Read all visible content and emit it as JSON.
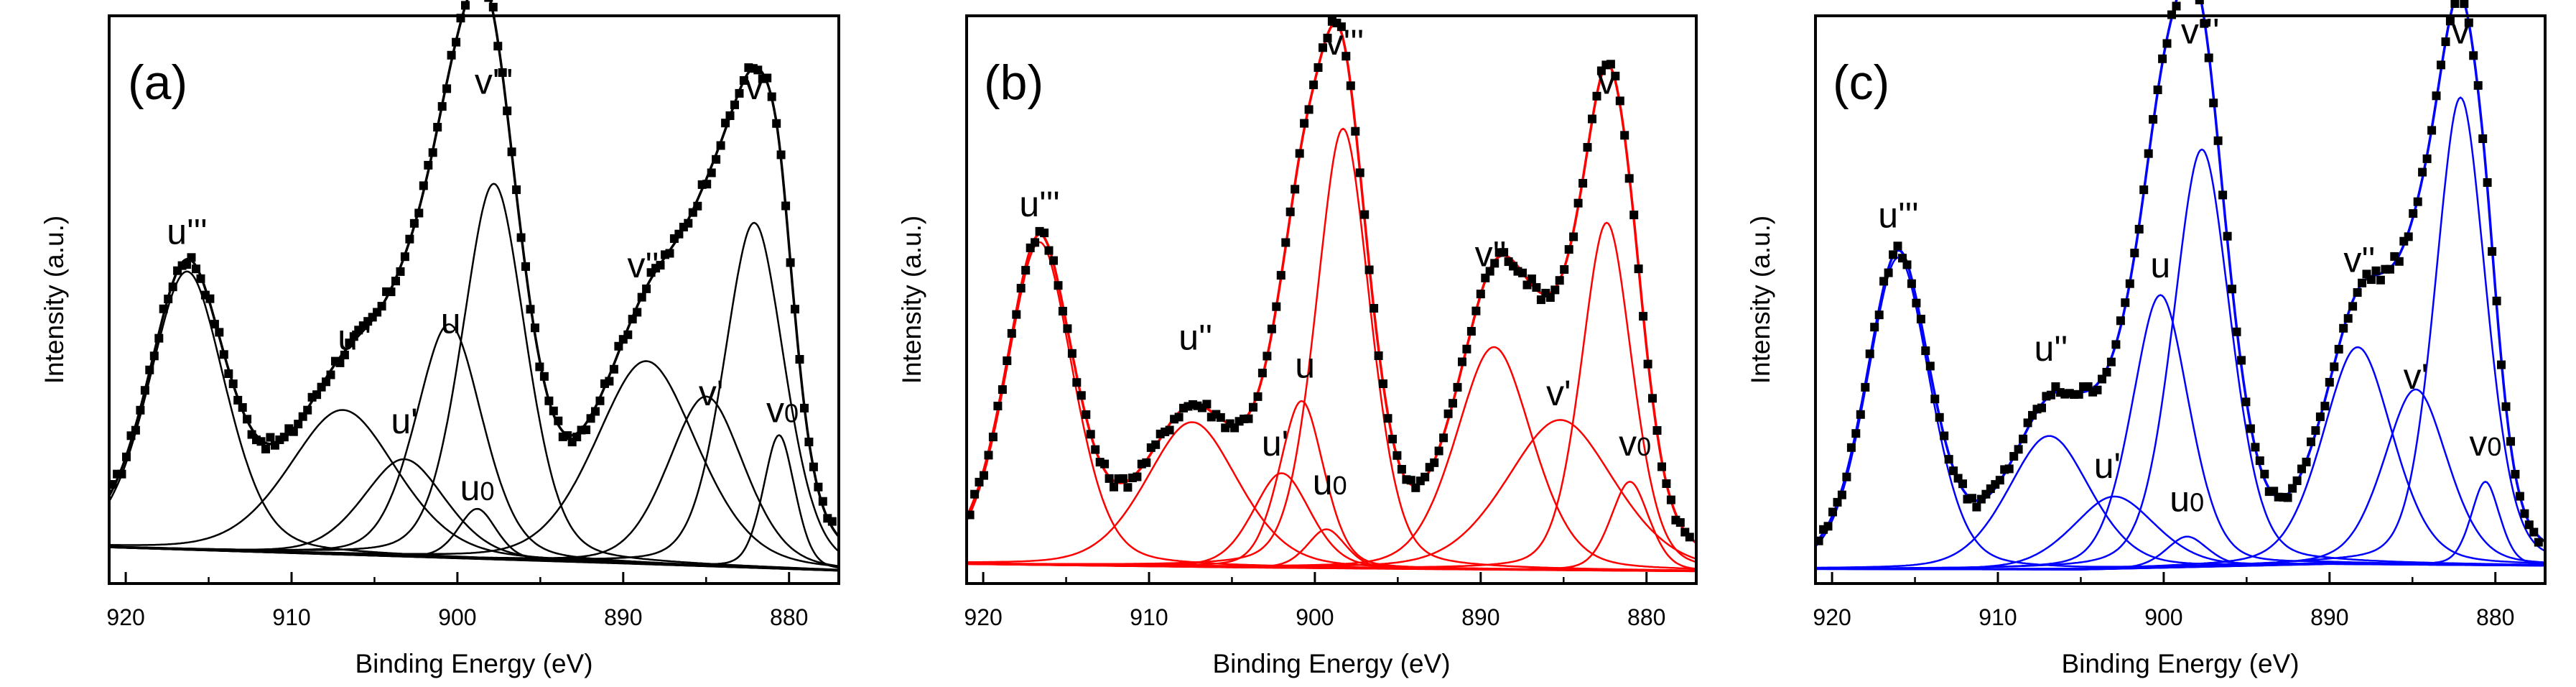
{
  "colors": {
    "panel_a": "#000000",
    "panel_b": "#ff0000",
    "panel_c": "#0000ff",
    "data_points": "#000000"
  },
  "chart_data": [
    {
      "type": "line",
      "panel_label": "(a)",
      "title": "",
      "xlabel": "Binding Energy (eV)",
      "ylabel": "Intensity (a.u.)",
      "xlim": [
        921,
        877
      ],
      "ylim": [
        -2,
        100
      ],
      "x_ticks": [
        920,
        910,
        900,
        890,
        880
      ],
      "x_tick_labels": [
        "920",
        "910",
        "900",
        "890",
        "880"
      ],
      "grid": false,
      "component_color": "#000000",
      "background": {
        "points": [
          [
            921,
            4.5
          ],
          [
            905,
            3.0
          ],
          [
            890,
            1.6
          ],
          [
            877,
            0.3
          ]
        ]
      },
      "components": [
        {
          "label": "u'''",
          "center": 916.3,
          "height": 50.0,
          "width": 2.4
        },
        {
          "label": "u''",
          "center": 906.9,
          "height": 26.0,
          "width": 3.4
        },
        {
          "label": "u'",
          "center": 903.2,
          "height": 17.5,
          "width": 2.6
        },
        {
          "label": "u",
          "center": 900.5,
          "height": 42.0,
          "width": 2.1
        },
        {
          "label": "u0",
          "center": 898.8,
          "height": 9.0,
          "width": 1.2
        },
        {
          "label": "v'''",
          "center": 897.8,
          "height": 67.5,
          "width": 2.0
        },
        {
          "label": "v''",
          "center": 888.6,
          "height": 36.5,
          "width": 3.2
        },
        {
          "label": "v'",
          "center": 885.0,
          "height": 30.5,
          "width": 2.4
        },
        {
          "label": "v",
          "center": 882.1,
          "height": 62.0,
          "width": 1.9
        },
        {
          "label": "v0",
          "center": 880.6,
          "height": 24.0,
          "width": 1.0
        }
      ],
      "peak_labels": [
        {
          "text": "u'''",
          "x": 916.3,
          "y": 59
        },
        {
          "text": "u''",
          "x": 906.2,
          "y": 40
        },
        {
          "text": "u'",
          "x": 903.2,
          "y": 25
        },
        {
          "text": "u",
          "x": 900.4,
          "y": 43
        },
        {
          "text": "u0",
          "x": 898.8,
          "y": 13
        },
        {
          "text": "v'''",
          "x": 897.8,
          "y": 86
        },
        {
          "text": "v''",
          "x": 888.8,
          "y": 53
        },
        {
          "text": "v'",
          "x": 884.7,
          "y": 30
        },
        {
          "text": "v",
          "x": 882.1,
          "y": 85
        },
        {
          "text": "v0",
          "x": 880.4,
          "y": 27
        }
      ]
    },
    {
      "type": "line",
      "panel_label": "(b)",
      "title": "",
      "xlabel": "Binding Energy (eV)",
      "ylabel": "Intensity (a.u.)",
      "xlim": [
        921,
        877
      ],
      "ylim": [
        -2,
        100
      ],
      "x_ticks": [
        920,
        910,
        900,
        890,
        880
      ],
      "x_tick_labels": [
        "920",
        "910",
        "900",
        "890",
        "880"
      ],
      "grid": false,
      "component_color": "#ff0000",
      "background": {
        "points": [
          [
            921,
            1.5
          ],
          [
            905,
            0.9
          ],
          [
            890,
            0.5
          ],
          [
            877,
            0.2
          ]
        ]
      },
      "components": [
        {
          "label": "u'''",
          "center": 916.6,
          "height": 58.0,
          "width": 2.1
        },
        {
          "label": "u''",
          "center": 907.4,
          "height": 26.0,
          "width": 2.9
        },
        {
          "label": "u'",
          "center": 902.0,
          "height": 17.0,
          "width": 1.8
        },
        {
          "label": "u",
          "center": 900.8,
          "height": 30.0,
          "width": 1.4
        },
        {
          "label": "u0",
          "center": 899.3,
          "height": 7.0,
          "width": 1.2
        },
        {
          "label": "v'''",
          "center": 898.3,
          "height": 79.0,
          "width": 1.7
        },
        {
          "label": "v''",
          "center": 889.2,
          "height": 40.0,
          "width": 2.4
        },
        {
          "label": "v'",
          "center": 885.2,
          "height": 27.0,
          "width": 3.4
        },
        {
          "label": "v",
          "center": 882.4,
          "height": 62.5,
          "width": 1.6
        },
        {
          "label": "v0",
          "center": 881.0,
          "height": 16.0,
          "width": 1.2
        }
      ],
      "peak_labels": [
        {
          "text": "u'''",
          "x": 916.6,
          "y": 64
        },
        {
          "text": "u''",
          "x": 907.2,
          "y": 40
        },
        {
          "text": "u'",
          "x": 902.4,
          "y": 21
        },
        {
          "text": "u",
          "x": 900.6,
          "y": 35
        },
        {
          "text": "u0",
          "x": 899.1,
          "y": 14
        },
        {
          "text": "v'''",
          "x": 898.2,
          "y": 93
        },
        {
          "text": "v''",
          "x": 889.4,
          "y": 55
        },
        {
          "text": "v'",
          "x": 885.3,
          "y": 30
        },
        {
          "text": "v",
          "x": 882.4,
          "y": 86
        },
        {
          "text": "v0",
          "x": 880.7,
          "y": 21
        }
      ]
    },
    {
      "type": "line",
      "panel_label": "(c)",
      "title": "",
      "xlabel": "Binding Energy (eV)",
      "ylabel": "Intensity (a.u.)",
      "xlim": [
        921,
        877
      ],
      "ylim": [
        -2,
        100
      ],
      "x_ticks": [
        920,
        910,
        900,
        890,
        880
      ],
      "x_tick_labels": [
        "920",
        "910",
        "900",
        "890",
        "880"
      ],
      "grid": false,
      "component_color": "#0000ff",
      "background": {
        "points": [
          [
            921,
            0.6
          ],
          [
            905,
            0.5
          ],
          [
            890,
            1.5
          ],
          [
            877,
            1.2
          ]
        ]
      },
      "components": [
        {
          "label": "u'''",
          "center": 916.0,
          "height": 56.0,
          "width": 2.0
        },
        {
          "label": "u''",
          "center": 906.9,
          "height": 24.0,
          "width": 2.6
        },
        {
          "label": "u'",
          "center": 903.0,
          "height": 13.0,
          "width": 2.6
        },
        {
          "label": "u",
          "center": 900.2,
          "height": 49.0,
          "width": 1.8
        },
        {
          "label": "u0",
          "center": 898.6,
          "height": 5.5,
          "width": 1.3
        },
        {
          "label": "v'''",
          "center": 897.7,
          "height": 75.0,
          "width": 1.8
        },
        {
          "label": "v''",
          "center": 888.3,
          "height": 39.0,
          "width": 2.2
        },
        {
          "label": "v'",
          "center": 884.8,
          "height": 31.5,
          "width": 2.0
        },
        {
          "label": "v",
          "center": 882.1,
          "height": 84.0,
          "width": 1.6
        },
        {
          "label": "v0",
          "center": 880.6,
          "height": 15.0,
          "width": 0.9
        }
      ],
      "peak_labels": [
        {
          "text": "u'''",
          "x": 916.0,
          "y": 62
        },
        {
          "text": "u''",
          "x": 906.8,
          "y": 38
        },
        {
          "text": "u'",
          "x": 903.4,
          "y": 17
        },
        {
          "text": "u",
          "x": 900.2,
          "y": 53
        },
        {
          "text": "u0",
          "x": 898.6,
          "y": 11
        },
        {
          "text": "v'''",
          "x": 897.8,
          "y": 95
        },
        {
          "text": "v''",
          "x": 888.2,
          "y": 54
        },
        {
          "text": "v'",
          "x": 884.8,
          "y": 33
        },
        {
          "text": "v",
          "x": 882.1,
          "y": 95
        },
        {
          "text": "v0",
          "x": 880.6,
          "y": 21
        }
      ]
    }
  ]
}
